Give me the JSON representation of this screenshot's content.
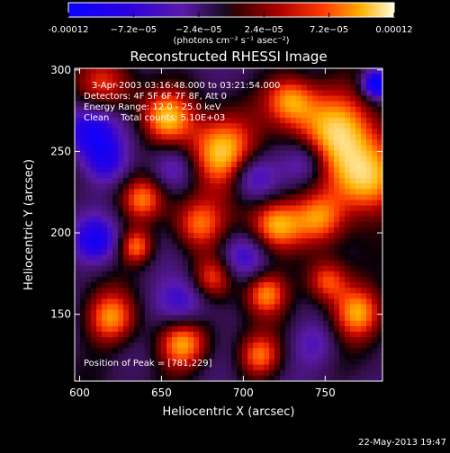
{
  "chart_data": {
    "type": "heatmap",
    "title": "Reconstructed RHESSI Image",
    "xlabel": "Heliocentric X (arcsec)",
    "ylabel": "Heliocentric Y (arcsec)",
    "xlim": [
      597,
      785
    ],
    "ylim": [
      109,
      301
    ],
    "xticks": [
      600,
      650,
      700,
      750
    ],
    "yticks": [
      150,
      200,
      250,
      300
    ],
    "colorbar": {
      "min": -0.00012,
      "max": 0.00012,
      "tick_values": [
        -0.00012,
        -7.2e-05,
        -2.4e-05,
        2.4e-05,
        7.2e-05,
        0.00012
      ],
      "tick_labels": [
        "-0.00012",
        "−7.2e−05",
        "−2.4e−05",
        "2.4e−05",
        "7.2e−05",
        "0.00012"
      ],
      "units": "(photons cm⁻² s⁻¹ asec⁻²)"
    },
    "annotations": [
      "3-Apr-2003 03:16:48.000 to 03:21:54.000",
      "Detectors: 4F 5F 6F 7F 8F, Att 0",
      "Energy Range: 12.0 - 25.0 keV",
      "Clean    Total counts: 5.10E+03"
    ],
    "peak_label": "Position of Peak = [781,229]",
    "peak": [
      781,
      229
    ]
  },
  "footer": {
    "timestamp": "22-May-2013 19:47"
  }
}
